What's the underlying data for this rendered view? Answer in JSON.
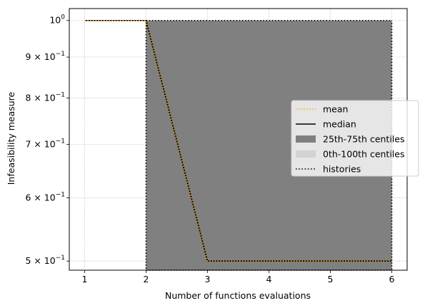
{
  "chart_data": {
    "type": "line",
    "xlabel": "Number of functions evaluations",
    "ylabel": "Infeasibility measure",
    "yscale": "log",
    "xlim": [
      0.75,
      6.25
    ],
    "ylim": [
      0.487,
      1.035
    ],
    "x_ticks": [
      1,
      2,
      3,
      4,
      5,
      6
    ],
    "y_ticks": [
      {
        "value": 1.0,
        "base": "10",
        "exp": "0"
      },
      {
        "value": 0.9,
        "base": "9 × 10",
        "exp": "−1"
      },
      {
        "value": 0.8,
        "base": "8 × 10",
        "exp": "−1"
      },
      {
        "value": 0.7,
        "base": "7 × 10",
        "exp": "−1"
      },
      {
        "value": 0.6,
        "base": "6 × 10",
        "exp": "−1"
      },
      {
        "value": 0.5,
        "base": "5 × 10",
        "exp": "−1"
      }
    ],
    "grid": true,
    "legend_position": "center-right",
    "x": [
      1,
      2,
      3,
      4,
      5,
      6
    ],
    "series": [
      {
        "name": "mean",
        "style": "dotted",
        "color": "#ffa500",
        "values": [
          1.0,
          1.0,
          0.5,
          0.5,
          0.5,
          0.5
        ]
      },
      {
        "name": "median",
        "style": "solid",
        "color": "#000000",
        "values": [
          1.0,
          1.0,
          0.5,
          0.5,
          0.5,
          0.5
        ]
      },
      {
        "name": "25th-75th centiles",
        "style": "band",
        "color": "#808080",
        "x": [
          2,
          3,
          4,
          5,
          6
        ],
        "lower": [
          0.487,
          0.487,
          0.487,
          0.487,
          0.487
        ],
        "upper": [
          1.0,
          1.0,
          1.0,
          1.0,
          1.0
        ]
      },
      {
        "name": "0th-100th centiles",
        "style": "band",
        "color": "#d3d3d3",
        "x": [
          2,
          3,
          4,
          5,
          6
        ],
        "lower": [
          0.487,
          0.487,
          0.487,
          0.487,
          0.487
        ],
        "upper": [
          1.0,
          1.0,
          1.0,
          1.0,
          1.0
        ]
      },
      {
        "name": "histories",
        "style": "dotted",
        "color": "#000000",
        "lines": [
          {
            "x": [
              1,
              2,
              3,
              4,
              5,
              6
            ],
            "y": [
              1.0,
              1.0,
              0.5,
              0.5,
              0.5,
              0.5
            ]
          },
          {
            "x": [
              1,
              2,
              2,
              6,
              6
            ],
            "y": [
              1.0,
              1.0,
              0.487,
              0.487,
              1.0
            ]
          },
          {
            "x": [
              2,
              6
            ],
            "y": [
              1.0,
              1.0
            ]
          }
        ]
      }
    ]
  }
}
